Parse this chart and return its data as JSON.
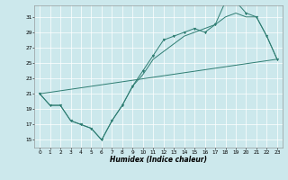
{
  "xlabel": "Humidex (Indice chaleur)",
  "bg_color": "#cce8ec",
  "line_color": "#2e7d72",
  "grid_color": "#ffffff",
  "xlim": [
    -0.5,
    23.5
  ],
  "ylim": [
    14.0,
    32.5
  ],
  "xticks": [
    0,
    1,
    2,
    3,
    4,
    5,
    6,
    7,
    8,
    9,
    10,
    11,
    12,
    13,
    14,
    15,
    16,
    17,
    18,
    19,
    20,
    21,
    22,
    23
  ],
  "yticks": [
    15,
    17,
    19,
    21,
    23,
    25,
    27,
    29,
    31
  ],
  "line1_x": [
    0,
    1,
    2,
    3,
    4,
    5,
    6,
    7,
    8,
    9,
    10,
    11,
    12,
    13,
    14,
    15,
    16,
    17,
    18,
    19,
    20,
    21,
    22,
    23
  ],
  "line1_y": [
    21,
    19.5,
    19.5,
    17.5,
    17,
    16.5,
    15,
    17.5,
    19.5,
    22,
    24,
    26,
    28,
    28.5,
    29,
    29.5,
    29,
    30,
    33,
    33,
    31.5,
    31,
    28.5,
    25.5
  ],
  "line2_x": [
    0,
    1,
    2,
    3,
    4,
    5,
    6,
    7,
    8,
    9,
    10,
    11,
    12,
    13,
    14,
    15,
    16,
    17,
    18,
    19,
    20,
    21,
    22,
    23
  ],
  "line2_y": [
    21,
    19.5,
    19.5,
    17.5,
    17,
    16.5,
    15,
    17.5,
    19.5,
    22,
    23.5,
    25.5,
    26.5,
    27.5,
    28.5,
    29,
    29.5,
    30,
    31,
    31.5,
    31,
    31,
    28.5,
    25.5
  ],
  "line3_x": [
    0,
    23
  ],
  "line3_y": [
    21,
    25.5
  ],
  "xlabel_fontsize": 5.5,
  "tick_fontsize": 4.2
}
